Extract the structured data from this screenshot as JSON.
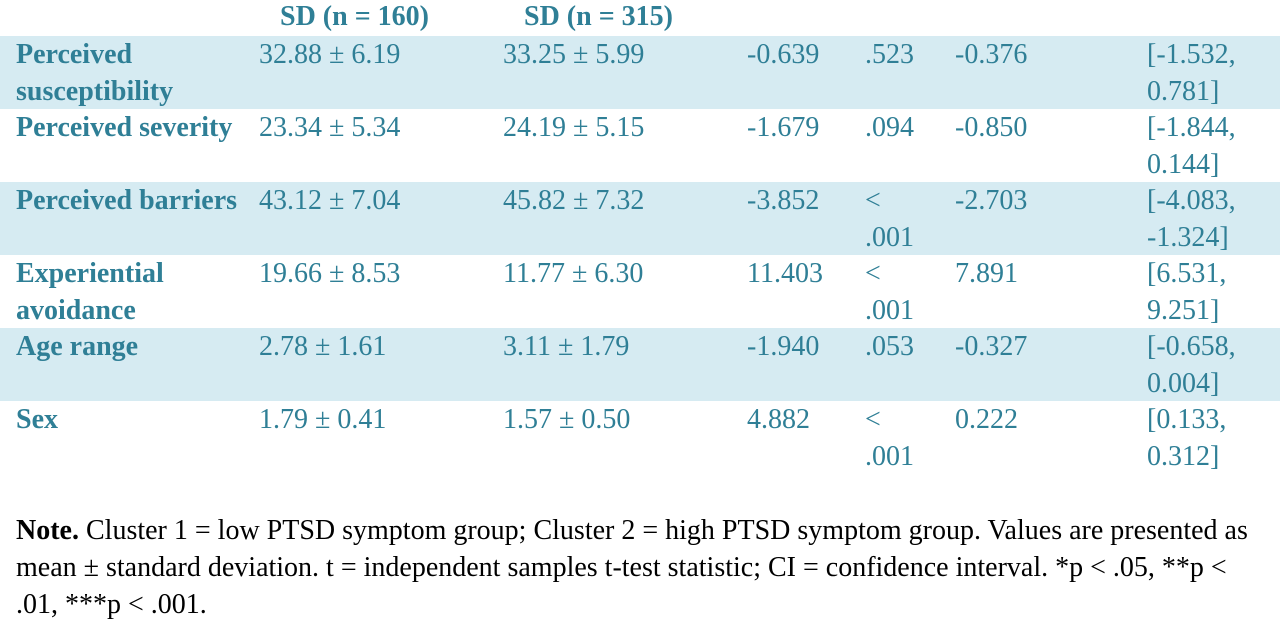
{
  "header": {
    "col1": "SD (n = 160)",
    "col2": "SD (n = 315)"
  },
  "rows": [
    {
      "label": "Perceived susceptibility",
      "m1": "32.88 ± 6.19",
      "m2": "33.25 ± 5.99",
      "t": "-0.639",
      "p": ".523",
      "d": "-0.376",
      "ci": "[-1.532, 0.781]"
    },
    {
      "label": "Perceived severity",
      "m1": "23.34 ± 5.34",
      "m2": "24.19 ± 5.15",
      "t": "-1.679",
      "p": ".094",
      "d": "-0.850",
      "ci": "[-1.844, 0.144]"
    },
    {
      "label": "Perceived barriers",
      "m1": "43.12 ± 7.04",
      "m2": "45.82 ± 7.32",
      "t": "-3.852",
      "p": "< .001",
      "d": "-2.703",
      "ci": "[-4.083, -1.324]"
    },
    {
      "label": "Experiential avoidance",
      "m1": "19.66 ± 8.53",
      "m2": "11.77 ± 6.30",
      "t": "11.403",
      "p": "< .001",
      "d": "7.891",
      "ci": "[6.531, 9.251]"
    },
    {
      "label": "Age range",
      "m1": "2.78 ± 1.61",
      "m2": "3.11 ± 1.79",
      "t": "-1.940",
      "p": ".053",
      "d": "-0.327",
      "ci": "[-0.658, 0.004]"
    },
    {
      "label": "Sex",
      "m1": "1.79 ± 0.41",
      "m2": "1.57 ± 0.50",
      "t": "4.882",
      "p": "< .001",
      "d": "0.222",
      "ci": "[0.133, 0.312]"
    }
  ],
  "note": {
    "label": "Note.",
    "text": " Cluster 1 = low PTSD symptom group; Cluster 2 = high PTSD symptom group. Values are presented as mean ± standard deviation. t = independent samples t-test statistic; CI = confidence interval. *p < .05, **p < .01, ***p < .001."
  },
  "colors": {
    "text_accent": "#2f7f96",
    "row_shade": "#d6ebf2",
    "note_text": "#000000"
  }
}
